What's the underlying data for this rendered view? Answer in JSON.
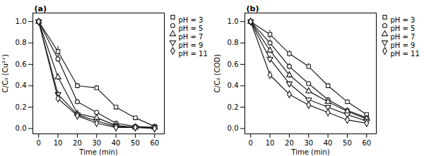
{
  "chart_data": [
    {
      "type": "line",
      "annotations": [
        "(a)"
      ],
      "xlabel": "Time (min)",
      "ylabel": "C/C₀ (Cu²⁺)",
      "x": [
        0,
        10,
        20,
        30,
        40,
        50,
        60
      ],
      "xlim": [
        -3,
        65
      ],
      "xticks": [
        0,
        10,
        20,
        30,
        40,
        50,
        60
      ],
      "ylim": [
        -0.05,
        1.08
      ],
      "yticks": [
        {
          "value": 0.0,
          "label": "0.0"
        },
        0.2,
        0.4,
        0.6,
        0.8,
        {
          "value": 1.0,
          "label": "1.0"
        }
      ],
      "grid": false,
      "legend": "upper right",
      "color": "#1a1a1a",
      "series": [
        {
          "name": "pH = 3",
          "marker": "square",
          "values": [
            1.0,
            0.72,
            0.4,
            0.38,
            0.2,
            0.1,
            0.02
          ],
          "errors": [
            0.0,
            0.05,
            0.02,
            0.02,
            0.01,
            0.01,
            0.01
          ]
        },
        {
          "name": "pH = 5",
          "marker": "circle",
          "values": [
            1.0,
            0.65,
            0.25,
            0.15,
            0.05,
            0.02,
            0.01
          ],
          "errors": [
            0.0,
            0.03,
            0.02,
            0.02,
            0.01,
            0.01,
            0.01
          ]
        },
        {
          "name": "pH = 7",
          "marker": "triangle-up",
          "values": [
            1.0,
            0.48,
            0.14,
            0.1,
            0.03,
            0.01,
            0.01
          ],
          "errors": [
            0.0,
            0.03,
            0.02,
            0.02,
            0.01,
            0.01,
            0.01
          ]
        },
        {
          "name": "pH = 9",
          "marker": "triangle-down",
          "values": [
            1.0,
            0.32,
            0.13,
            0.07,
            0.02,
            0.01,
            0.01
          ],
          "errors": [
            0.0,
            0.03,
            0.02,
            0.01,
            0.01,
            0.01,
            0.01
          ]
        },
        {
          "name": "pH = 11",
          "marker": "diamond",
          "values": [
            1.0,
            0.28,
            0.12,
            0.05,
            0.01,
            0.01,
            0.0
          ],
          "errors": [
            0.0,
            0.03,
            0.02,
            0.01,
            0.01,
            0.01,
            0.0
          ]
        }
      ]
    },
    {
      "type": "line",
      "annotations": [
        "(b)"
      ],
      "xlabel": "Time (min)",
      "ylabel": "C/C₀ (COD)",
      "x": [
        0,
        10,
        20,
        30,
        40,
        50,
        60
      ],
      "xlim": [
        -3,
        65
      ],
      "xticks": [
        0,
        10,
        20,
        30,
        40,
        50,
        60
      ],
      "ylim": [
        -0.05,
        1.08
      ],
      "yticks": [
        {
          "value": 0.0,
          "label": "0.0"
        },
        0.2,
        0.4,
        0.6,
        0.8,
        {
          "value": 1.0,
          "label": "1.0"
        }
      ],
      "grid": false,
      "legend": "upper right",
      "color": "#1a1a1a",
      "series": [
        {
          "name": "pH = 3",
          "marker": "square",
          "values": [
            1.0,
            0.88,
            0.7,
            0.58,
            0.4,
            0.25,
            0.13
          ],
          "errors": [
            0.0,
            0.04,
            0.03,
            0.03,
            0.02,
            0.02,
            0.01
          ]
        },
        {
          "name": "pH = 5",
          "marker": "circle",
          "values": [
            1.0,
            0.8,
            0.58,
            0.42,
            0.27,
            0.17,
            0.1
          ],
          "errors": [
            0.0,
            0.03,
            0.03,
            0.02,
            0.02,
            0.01,
            0.01
          ]
        },
        {
          "name": "pH = 7",
          "marker": "triangle-up",
          "values": [
            1.0,
            0.73,
            0.5,
            0.35,
            0.25,
            0.16,
            0.09
          ],
          "errors": [
            0.0,
            0.03,
            0.03,
            0.03,
            0.02,
            0.01,
            0.01
          ]
        },
        {
          "name": "pH = 9",
          "marker": "triangle-down",
          "values": [
            1.0,
            0.65,
            0.42,
            0.27,
            0.2,
            0.13,
            0.07
          ],
          "errors": [
            0.0,
            0.03,
            0.02,
            0.02,
            0.01,
            0.01,
            0.01
          ]
        },
        {
          "name": "pH = 11",
          "marker": "diamond",
          "values": [
            1.0,
            0.5,
            0.32,
            0.22,
            0.15,
            0.08,
            0.05
          ],
          "errors": [
            0.0,
            0.03,
            0.02,
            0.02,
            0.01,
            0.01,
            0.01
          ]
        }
      ]
    }
  ]
}
